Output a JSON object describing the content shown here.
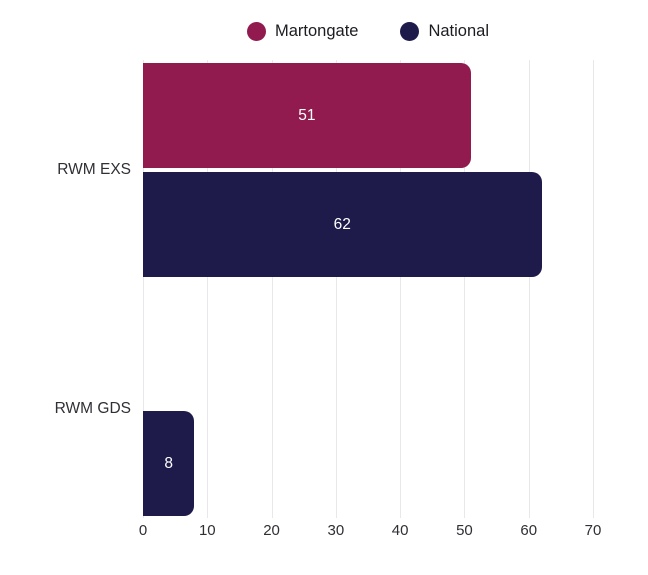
{
  "chart_data": {
    "type": "bar",
    "orientation": "horizontal",
    "title": "",
    "xlabel": "",
    "ylabel": "",
    "categories": [
      "RWM EXS",
      "RWM GDS"
    ],
    "series": [
      {
        "name": "Martongate",
        "color": "#911B4E",
        "values": [
          51,
          null
        ]
      },
      {
        "name": "National",
        "color": "#1E1B4B",
        "values": [
          62,
          8
        ]
      }
    ],
    "xlim": [
      0,
      70
    ],
    "xticks": [
      0,
      10,
      20,
      30,
      40,
      50,
      60,
      70
    ],
    "grid": "vertical",
    "legend_position": "top",
    "value_labels": "inside-center",
    "value_label_color": "#ffffff"
  },
  "legend": {
    "items": [
      {
        "label": "Martongate",
        "color": "#911B4E"
      },
      {
        "label": "National",
        "color": "#1E1B4B"
      }
    ]
  },
  "colors": {
    "background": "#ffffff",
    "gridline": "#e8e8eb",
    "text": "#2f2f35"
  }
}
